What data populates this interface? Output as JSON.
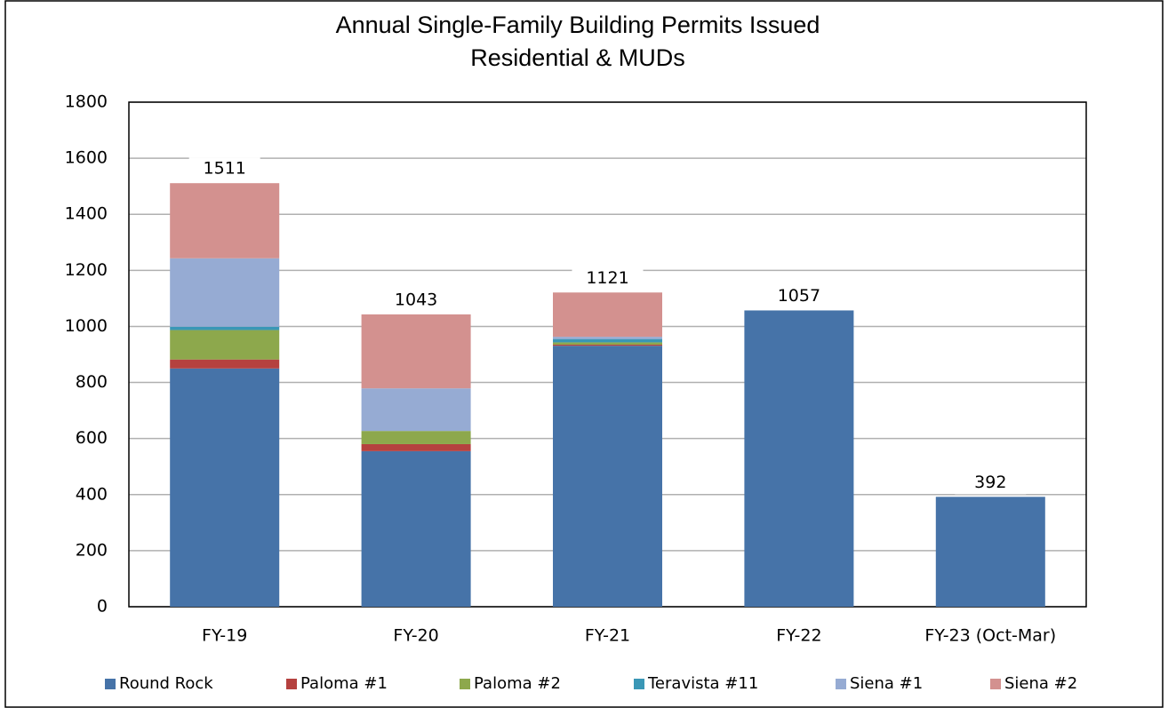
{
  "chart_data": {
    "type": "stacked_bar",
    "title": "Annual Single-Family Building Permits Issued",
    "subtitle": "Residential & MUDs",
    "categories": [
      "FY-19",
      "FY-20",
      "FY-21",
      "FY-22",
      "FY-23 (Oct-Mar)"
    ],
    "series": [
      {
        "name": "Round Rock",
        "color": "#4673a8",
        "values": [
          850,
          555,
          931,
          1057,
          392
        ]
      },
      {
        "name": "Paloma #1",
        "color": "#b5413f",
        "values": [
          32,
          25,
          4,
          0,
          0
        ]
      },
      {
        "name": "Paloma #2",
        "color": "#8da84c",
        "values": [
          105,
          47,
          8,
          0,
          0
        ]
      },
      {
        "name": "Teravista #11",
        "color": "#3a97b6",
        "values": [
          12,
          0,
          12,
          0,
          0
        ]
      },
      {
        "name": "Siena #1",
        "color": "#96abd3",
        "values": [
          244,
          152,
          8,
          0,
          0
        ]
      },
      {
        "name": "Siena #2",
        "color": "#d3918f",
        "values": [
          268,
          264,
          158,
          0,
          0
        ]
      }
    ],
    "totals": [
      1511,
      1043,
      1121,
      1057,
      392
    ],
    "ylim": [
      0,
      1800
    ],
    "yticks": [
      0,
      200,
      400,
      600,
      800,
      1000,
      1200,
      1400,
      1600,
      1800
    ],
    "grid": true,
    "legend": "bottom"
  }
}
